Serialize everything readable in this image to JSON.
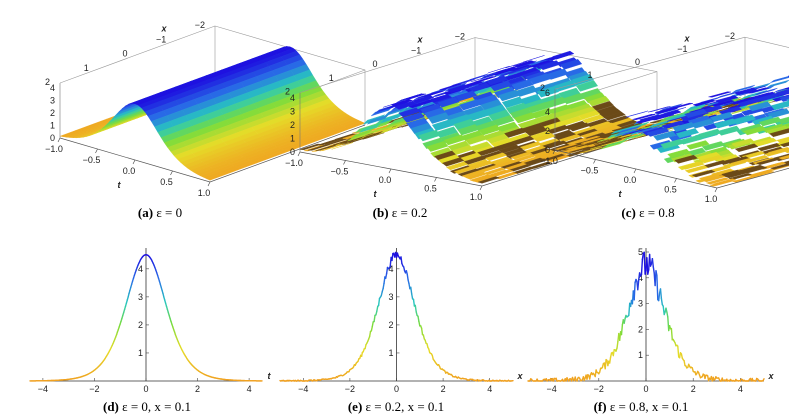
{
  "chart_data": [
    {
      "type": "surface",
      "panel": "a",
      "caption_tag": "(a)",
      "caption_rest": "ε = 0",
      "epsilon": 0,
      "axes": {
        "t": [
          -1.0,
          1.0
        ],
        "x": [
          -2,
          2
        ],
        "z": [
          0,
          4
        ]
      },
      "t_ticks": [
        "-1.0",
        "-0.5",
        "0.0",
        "0.5",
        "1.0"
      ],
      "x_ticks": [
        "-2",
        "-1",
        "0",
        "1",
        "2"
      ],
      "z_ticks": [
        "0",
        "1",
        "2",
        "3",
        "4"
      ],
      "t_label": "t",
      "x_label": "x",
      "peak": 4.5,
      "noise": 0
    },
    {
      "type": "surface",
      "panel": "b",
      "caption_tag": "(b)",
      "caption_rest": "ε = 0.2",
      "epsilon": 0.2,
      "axes": {
        "t": [
          -1.0,
          1.0
        ],
        "x": [
          -2,
          2
        ],
        "z": [
          0,
          4
        ]
      },
      "t_ticks": [
        "-1.0",
        "-0.5",
        "0.0",
        "0.5",
        "1.0"
      ],
      "x_ticks": [
        "-2",
        "-1",
        "0",
        "1",
        "2"
      ],
      "z_ticks": [
        "0",
        "1",
        "2",
        "3",
        "4"
      ],
      "t_label": "t",
      "x_label": "x",
      "peak": 4.5,
      "noise": 0.2
    },
    {
      "type": "surface",
      "panel": "c",
      "caption_tag": "(c)",
      "caption_rest": "ε = 0.8",
      "epsilon": 0.8,
      "axes": {
        "t": [
          -1.0,
          1.0
        ],
        "x": [
          -2,
          2
        ],
        "z": [
          0,
          6
        ]
      },
      "t_ticks": [
        "-1.0",
        "-0.5",
        "0.0",
        "0.5",
        "1.0"
      ],
      "x_ticks": [
        "-2",
        "-1",
        "0",
        "1",
        "2"
      ],
      "z_ticks": [
        "0",
        "2",
        "4",
        "6"
      ],
      "t_label": "t",
      "x_label": "x",
      "peak": 4.5,
      "noise": 0.8
    },
    {
      "type": "line",
      "panel": "d",
      "caption_tag": "(d)",
      "caption_rest": "ε = 0,  x = 0.1",
      "epsilon": 0,
      "x_value": 0.1,
      "xlim": [
        -4.5,
        4.5
      ],
      "ylim": [
        0,
        4.6
      ],
      "x_ticks": [
        "-4",
        "-2",
        "0",
        "2",
        "4"
      ],
      "y_ticks": [
        "1",
        "2",
        "3",
        "4"
      ],
      "xlabel": "t",
      "peak": 4.5,
      "noise": 0
    },
    {
      "type": "line",
      "panel": "e",
      "caption_tag": "(e)",
      "caption_rest": "ε = 0.2,  x = 0.1",
      "epsilon": 0.2,
      "x_value": 0.1,
      "xlim": [
        -5,
        5
      ],
      "ylim": [
        0,
        4.6
      ],
      "x_ticks": [
        "-4",
        "-2",
        "0",
        "2",
        "4"
      ],
      "y_ticks": [
        "1",
        "2",
        "3",
        "4"
      ],
      "xlabel": "x",
      "peak": 4.5,
      "noise": 0.2
    },
    {
      "type": "line",
      "panel": "f",
      "caption_tag": "(f)",
      "caption_rest": "ε = 0.8,  x = 0.1",
      "epsilon": 0.8,
      "x_value": 0.1,
      "xlim": [
        -5,
        5
      ],
      "ylim": [
        0,
        5
      ],
      "x_ticks": [
        "-4",
        "-2",
        "0",
        "2",
        "4"
      ],
      "y_ticks": [
        "1",
        "2",
        "3",
        "4",
        "5"
      ],
      "xlabel": "x",
      "peak": 4.5,
      "noise": 0.8
    }
  ],
  "colors": {
    "peak": "#1a10e0",
    "surface_base": "#f0a020",
    "noise_dark": "#6b4a18",
    "axes": "#333333"
  }
}
